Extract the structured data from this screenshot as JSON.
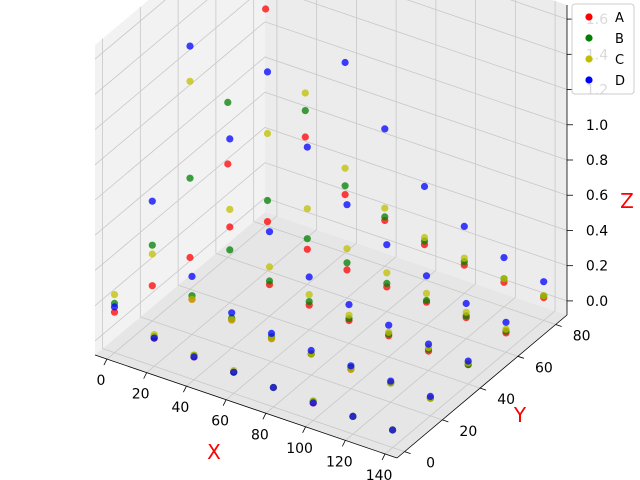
{
  "chart_data": {
    "type": "scatter",
    "projection": "3d",
    "xlabel": "X",
    "ylabel": "Y",
    "zlabel": "Z",
    "xlim": [
      -6,
      146
    ],
    "ylim": [
      -4,
      86
    ],
    "zlim": [
      -0.08,
      1.68
    ],
    "x_ticks": [
      "0",
      "20",
      "40",
      "60",
      "80",
      "100",
      "120",
      "140"
    ],
    "y_ticks": [
      "0",
      "20",
      "40",
      "60",
      "80"
    ],
    "z_ticks": [
      "0.0",
      "0.2",
      "0.4",
      "0.6",
      "0.8",
      "1.0",
      "1.2",
      "1.4",
      "1.6"
    ],
    "grid": true,
    "legend_position": "top-right",
    "colors": {
      "A": "#ff0000",
      "B": "#008000",
      "C": "#bfbf00",
      "D": "#0000ff",
      "axis_label": "#ff0000"
    },
    "series": [
      {
        "name": "A",
        "points": [
          [
            0,
            0,
            0.15
          ],
          [
            20,
            0,
            0.08
          ],
          [
            40,
            0,
            0.05
          ],
          [
            60,
            0,
            0.04
          ],
          [
            80,
            0,
            0.03
          ],
          [
            100,
            0,
            0.02
          ],
          [
            120,
            0,
            0.02
          ],
          [
            140,
            0,
            0.02
          ],
          [
            0,
            20,
            0.12
          ],
          [
            20,
            20,
            0.12
          ],
          [
            40,
            20,
            0.08
          ],
          [
            60,
            20,
            0.05
          ],
          [
            80,
            20,
            0.04
          ],
          [
            100,
            20,
            0.03
          ],
          [
            120,
            20,
            0.03
          ],
          [
            140,
            20,
            0.02
          ],
          [
            0,
            40,
            0.1
          ],
          [
            20,
            40,
            0.35
          ],
          [
            40,
            40,
            0.1
          ],
          [
            60,
            40,
            0.06
          ],
          [
            80,
            40,
            0.05
          ],
          [
            100,
            40,
            0.04
          ],
          [
            120,
            40,
            0.03
          ],
          [
            140,
            40,
            0.03
          ],
          [
            0,
            60,
            0.45
          ],
          [
            20,
            60,
            0.2
          ],
          [
            40,
            60,
            0.12
          ],
          [
            60,
            60,
            0.08
          ],
          [
            80,
            60,
            0.06
          ],
          [
            100,
            60,
            0.05
          ],
          [
            120,
            60,
            0.04
          ],
          [
            140,
            60,
            0.03
          ],
          [
            0,
            80,
            1.15
          ],
          [
            20,
            80,
            0.5
          ],
          [
            40,
            80,
            0.25
          ],
          [
            60,
            80,
            0.18
          ],
          [
            80,
            80,
            0.12
          ],
          [
            100,
            80,
            0.08
          ],
          [
            120,
            80,
            0.06
          ],
          [
            140,
            80,
            0.05
          ]
        ]
      },
      {
        "name": "B",
        "points": [
          [
            0,
            0,
            0.2
          ],
          [
            20,
            0,
            0.09
          ],
          [
            40,
            0,
            0.06
          ],
          [
            60,
            0,
            0.04
          ],
          [
            80,
            0,
            0.03
          ],
          [
            100,
            0,
            0.03
          ],
          [
            120,
            0,
            0.02
          ],
          [
            140,
            0,
            0.02
          ],
          [
            0,
            20,
            0.35
          ],
          [
            20,
            20,
            0.14
          ],
          [
            40,
            20,
            0.09
          ],
          [
            60,
            20,
            0.06
          ],
          [
            80,
            20,
            0.04
          ],
          [
            100,
            20,
            0.04
          ],
          [
            120,
            20,
            0.03
          ],
          [
            140,
            20,
            0.02
          ],
          [
            0,
            40,
            0.55
          ],
          [
            20,
            40,
            0.22
          ],
          [
            40,
            40,
            0.12
          ],
          [
            60,
            40,
            0.08
          ],
          [
            80,
            40,
            0.06
          ],
          [
            100,
            40,
            0.05
          ],
          [
            120,
            40,
            0.04
          ],
          [
            140,
            40,
            0.03
          ],
          [
            0,
            60,
            0.8
          ],
          [
            20,
            60,
            0.32
          ],
          [
            40,
            60,
            0.18
          ],
          [
            60,
            60,
            0.12
          ],
          [
            80,
            60,
            0.08
          ],
          [
            100,
            60,
            0.06
          ],
          [
            120,
            60,
            0.05
          ],
          [
            140,
            60,
            0.04
          ],
          [
            0,
            80,
            1.3
          ],
          [
            20,
            80,
            0.65
          ],
          [
            40,
            80,
            0.3
          ],
          [
            60,
            80,
            0.2
          ],
          [
            80,
            80,
            0.14
          ],
          [
            100,
            80,
            0.1
          ],
          [
            120,
            80,
            0.08
          ],
          [
            140,
            80,
            0.06
          ]
        ]
      },
      {
        "name": "C",
        "points": [
          [
            0,
            0,
            0.25
          ],
          [
            20,
            0,
            0.1
          ],
          [
            40,
            0,
            0.06
          ],
          [
            60,
            0,
            0.05
          ],
          [
            80,
            0,
            0.03
          ],
          [
            100,
            0,
            0.03
          ],
          [
            120,
            0,
            0.02
          ],
          [
            140,
            0,
            0.02
          ],
          [
            0,
            20,
            0.3
          ],
          [
            20,
            20,
            0.12
          ],
          [
            40,
            20,
            0.08
          ],
          [
            60,
            20,
            0.05
          ],
          [
            80,
            20,
            0.04
          ],
          [
            100,
            20,
            0.03
          ],
          [
            120,
            20,
            0.03
          ],
          [
            140,
            20,
            0.02
          ],
          [
            0,
            40,
            1.1
          ],
          [
            20,
            40,
            0.45
          ],
          [
            40,
            40,
            0.2
          ],
          [
            60,
            40,
            0.12
          ],
          [
            80,
            40,
            0.08
          ],
          [
            100,
            40,
            0.06
          ],
          [
            120,
            40,
            0.05
          ],
          [
            140,
            40,
            0.04
          ],
          [
            0,
            60,
            1.5
          ],
          [
            20,
            60,
            0.7
          ],
          [
            40,
            60,
            0.35
          ],
          [
            60,
            60,
            0.2
          ],
          [
            80,
            60,
            0.14
          ],
          [
            100,
            60,
            0.1
          ],
          [
            120,
            60,
            0.07
          ],
          [
            140,
            60,
            0.05
          ],
          [
            0,
            80,
            1.55
          ],
          [
            20,
            80,
            0.75
          ],
          [
            40,
            80,
            0.4
          ],
          [
            60,
            80,
            0.25
          ],
          [
            80,
            80,
            0.16
          ],
          [
            100,
            80,
            0.12
          ],
          [
            120,
            80,
            0.08
          ],
          [
            140,
            80,
            0.06
          ]
        ]
      },
      {
        "name": "D",
        "points": [
          [
            0,
            0,
            0.18
          ],
          [
            20,
            0,
            0.08
          ],
          [
            40,
            0,
            0.05
          ],
          [
            60,
            0,
            0.04
          ],
          [
            80,
            0,
            0.03
          ],
          [
            100,
            0,
            0.02
          ],
          [
            120,
            0,
            0.02
          ],
          [
            140,
            0,
            0.02
          ],
          [
            0,
            20,
            0.6
          ],
          [
            20,
            20,
            0.25
          ],
          [
            40,
            20,
            0.12
          ],
          [
            60,
            20,
            0.08
          ],
          [
            80,
            20,
            0.06
          ],
          [
            100,
            20,
            0.05
          ],
          [
            120,
            20,
            0.04
          ],
          [
            140,
            20,
            0.03
          ],
          [
            0,
            40,
            1.3
          ],
          [
            20,
            40,
            0.85
          ],
          [
            40,
            40,
            0.4
          ],
          [
            60,
            40,
            0.22
          ],
          [
            80,
            40,
            0.14
          ],
          [
            100,
            40,
            0.1
          ],
          [
            120,
            40,
            0.07
          ],
          [
            140,
            40,
            0.05
          ],
          [
            0,
            60,
            1.5
          ],
          [
            20,
            60,
            1.05
          ],
          [
            40,
            60,
            0.7
          ],
          [
            60,
            60,
            0.45
          ],
          [
            80,
            60,
            0.3
          ],
          [
            100,
            60,
            0.2
          ],
          [
            120,
            60,
            0.12
          ],
          [
            140,
            60,
            0.09
          ],
          [
            0,
            80,
            1.6
          ],
          [
            20,
            80,
            1.3
          ],
          [
            40,
            80,
            1.0
          ],
          [
            60,
            80,
            0.7
          ],
          [
            80,
            80,
            0.45
          ],
          [
            100,
            80,
            0.3
          ],
          [
            120,
            80,
            0.2
          ],
          [
            140,
            80,
            0.14
          ]
        ]
      }
    ]
  }
}
